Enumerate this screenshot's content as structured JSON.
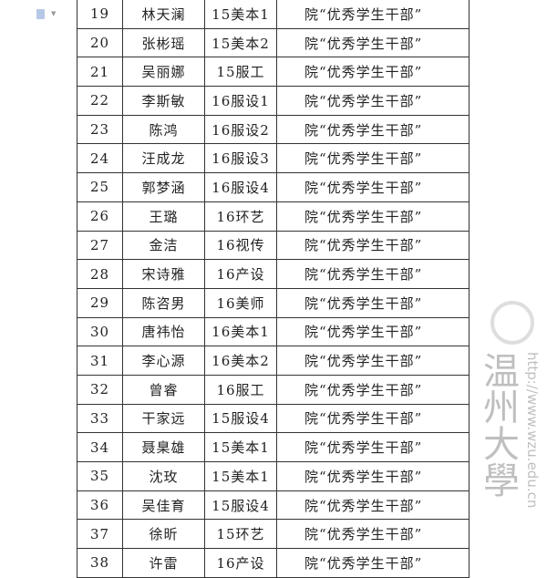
{
  "toolbar": {
    "icon": "document-icon"
  },
  "table": {
    "rows": [
      {
        "no": "19",
        "name": "林天澜",
        "class": "15美本1",
        "award": "院“优秀学生干部”"
      },
      {
        "no": "20",
        "name": "张彬瑶",
        "class": "15美本2",
        "award": "院“优秀学生干部”"
      },
      {
        "no": "21",
        "name": "吴丽娜",
        "class": "15服工",
        "award": "院“优秀学生干部”"
      },
      {
        "no": "22",
        "name": "李斯敏",
        "class": "16服设1",
        "award": "院“优秀学生干部”"
      },
      {
        "no": "23",
        "name": "陈鸿",
        "class": "16服设2",
        "award": "院“优秀学生干部”"
      },
      {
        "no": "24",
        "name": "汪成龙",
        "class": "16服设3",
        "award": "院“优秀学生干部”"
      },
      {
        "no": "25",
        "name": "郭梦涵",
        "class": "16服设4",
        "award": "院“优秀学生干部”"
      },
      {
        "no": "26",
        "name": "王璐",
        "class": "16环艺",
        "award": "院“优秀学生干部”"
      },
      {
        "no": "27",
        "name": "金洁",
        "class": "16视传",
        "award": "院“优秀学生干部”"
      },
      {
        "no": "28",
        "name": "宋诗雅",
        "class": "16产设",
        "award": "院“优秀学生干部”"
      },
      {
        "no": "29",
        "name": "陈咨男",
        "class": "16美师",
        "award": "院“优秀学生干部”"
      },
      {
        "no": "30",
        "name": "唐祎怡",
        "class": "16美本1",
        "award": "院“优秀学生干部”"
      },
      {
        "no": "31",
        "name": "李心源",
        "class": "16美本2",
        "award": "院“优秀学生干部”"
      },
      {
        "no": "32",
        "name": "曾睿",
        "class": "16服工",
        "award": "院“优秀学生干部”"
      },
      {
        "no": "33",
        "name": "干家远",
        "class": "15服设4",
        "award": "院“优秀学生干部”"
      },
      {
        "no": "34",
        "name": "聂臬雄",
        "class": "15美本1",
        "award": "院“优秀学生干部”"
      },
      {
        "no": "35",
        "name": "沈玫",
        "class": "15美本1",
        "award": "院“优秀学生干部”"
      },
      {
        "no": "36",
        "name": "吴佳育",
        "class": "15服设4",
        "award": "院“优秀学生干部”"
      },
      {
        "no": "37",
        "name": "徐昕",
        "class": "15环艺",
        "award": "院“优秀学生干部”"
      },
      {
        "no": "38",
        "name": "许雷",
        "class": "16产设",
        "award": "院“优秀学生干部”"
      }
    ]
  },
  "watermark": {
    "name": "温州大學",
    "url": "http://www.wzu.edu.cn"
  }
}
